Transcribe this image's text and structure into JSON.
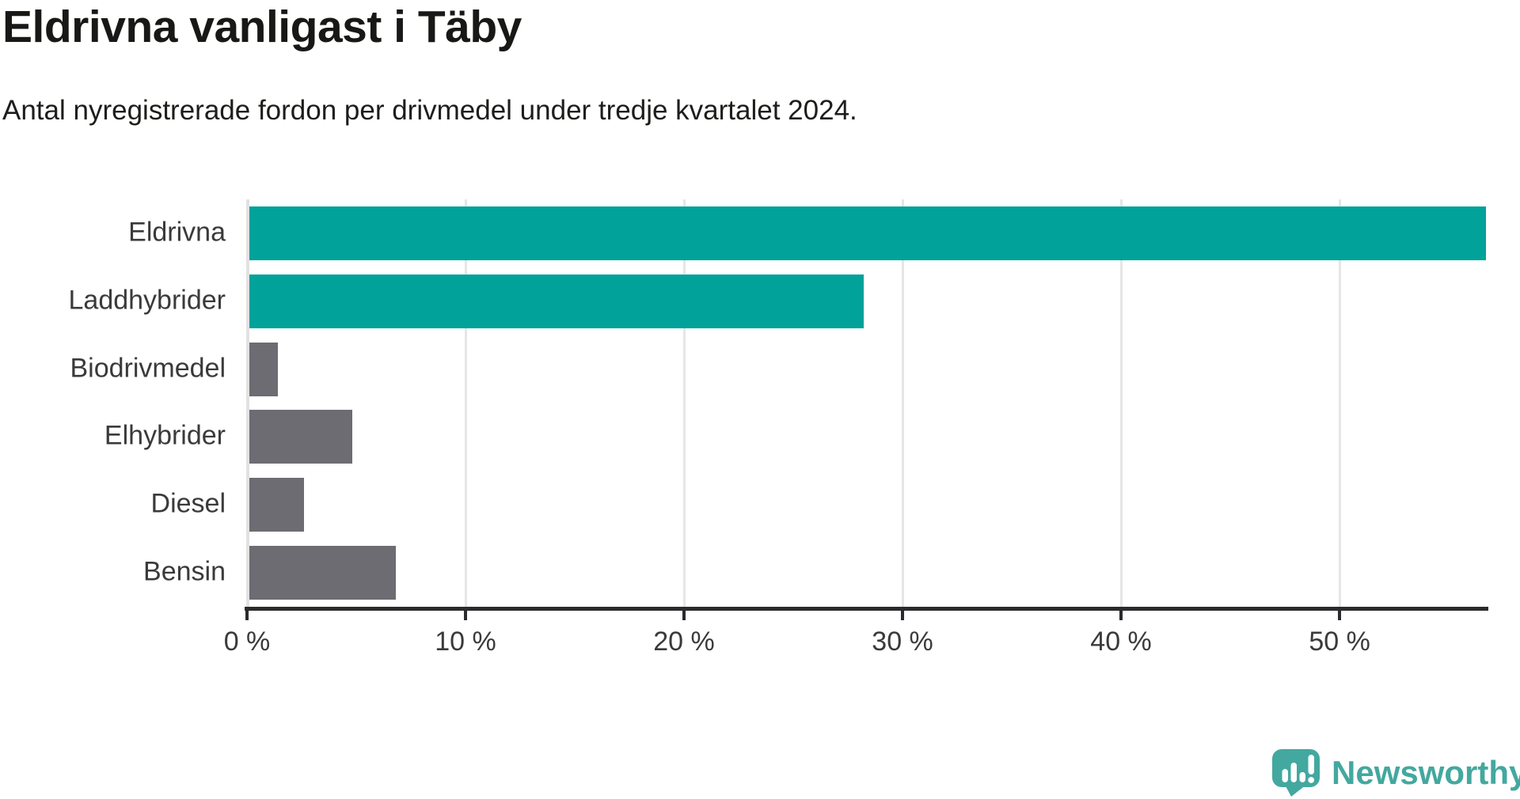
{
  "header": {
    "title": "Eldrivna vanligast i Täby",
    "subtitle": "Antal nyregistrerade fordon per drivmedel under tredje kvartalet 2024."
  },
  "colors": {
    "accent_teal": "#00a29a",
    "muted_gray": "#6c6c72",
    "axis_dark": "#2b2b2e",
    "gridline": "#e6e6e6",
    "text_dark": "#181816",
    "label_gray": "#3a3a3a",
    "logo_teal": "#43a89f"
  },
  "chart_data": {
    "type": "bar",
    "orientation": "horizontal",
    "title": "Eldrivna vanligast i Täby",
    "subtitle": "Antal nyregistrerade fordon per drivmedel under tredje kvartalet 2024.",
    "categories": [
      "Eldrivna",
      "Laddhybrider",
      "Biodrivmedel",
      "Elhybrider",
      "Diesel",
      "Bensin"
    ],
    "values": [
      56.6,
      28.1,
      1.3,
      4.7,
      2.5,
      6.7
    ],
    "unit": "%",
    "bar_colors": [
      "#00a29a",
      "#00a29a",
      "#6c6c72",
      "#6c6c72",
      "#6c6c72",
      "#6c6c72"
    ],
    "xlim": [
      0,
      56.7
    ],
    "xticks": [
      0,
      10,
      20,
      30,
      40,
      50
    ],
    "xtick_labels": [
      "0 %",
      "10 %",
      "20 %",
      "30 %",
      "40 %",
      "50 %"
    ],
    "grid": true,
    "legend": false,
    "xlabel": "",
    "ylabel": ""
  },
  "branding": {
    "logo_text": "Newsworthy",
    "logo_icon": "newsworthy-speech-bubble-chart-icon"
  }
}
